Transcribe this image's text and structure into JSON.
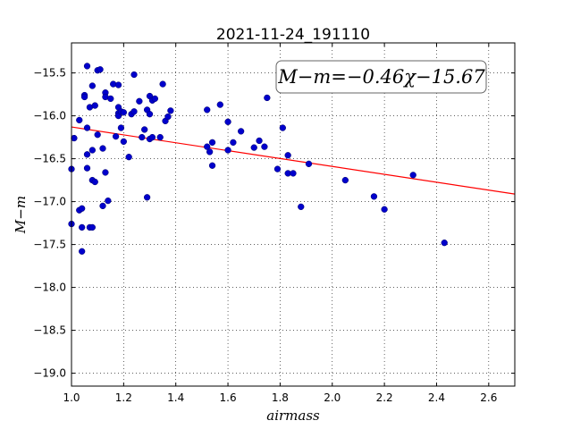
{
  "chart_data": {
    "type": "scatter",
    "title": "2021-11-24_191110",
    "xlabel": "airmass",
    "ylabel": "M−m",
    "xlim": [
      1.0,
      2.7
    ],
    "ylim": [
      -15.15,
      -19.15
    ],
    "y_inverted": true,
    "grid": true,
    "x_ticks": [
      1.0,
      1.2,
      1.4,
      1.6,
      1.8,
      2.0,
      2.2,
      2.4,
      2.6
    ],
    "x_tick_labels": [
      "1.0",
      "1.2",
      "1.4",
      "1.6",
      "1.8",
      "2.0",
      "2.2",
      "2.4",
      "2.6"
    ],
    "y_ticks": [
      -15.5,
      -16.0,
      -16.5,
      -17.0,
      -17.5,
      -18.0,
      -18.5,
      -19.0
    ],
    "y_tick_labels": [
      "−15.5",
      "−16.0",
      "−16.5",
      "−17.0",
      "−17.5",
      "−18.0",
      "−18.5",
      "−19.0"
    ],
    "annotation": "M−m=−0.46χ−15.67",
    "fit_line": {
      "slope": -0.46,
      "intercept": -15.67,
      "color": "#ff0000"
    },
    "point_color": "#0000cc",
    "points": [
      [
        1.0,
        -16.62
      ],
      [
        1.0,
        -17.26
      ],
      [
        1.01,
        -16.26
      ],
      [
        1.03,
        -16.05
      ],
      [
        1.03,
        -17.1
      ],
      [
        1.04,
        -17.08
      ],
      [
        1.04,
        -17.3
      ],
      [
        1.04,
        -17.58
      ],
      [
        1.05,
        -15.76
      ],
      [
        1.05,
        -15.78
      ],
      [
        1.06,
        -15.42
      ],
      [
        1.06,
        -16.14
      ],
      [
        1.06,
        -16.45
      ],
      [
        1.06,
        -16.61
      ],
      [
        1.07,
        -15.9
      ],
      [
        1.07,
        -17.3
      ],
      [
        1.08,
        -15.65
      ],
      [
        1.08,
        -16.4
      ],
      [
        1.08,
        -16.75
      ],
      [
        1.08,
        -17.3
      ],
      [
        1.09,
        -15.88
      ],
      [
        1.09,
        -16.77
      ],
      [
        1.1,
        -15.47
      ],
      [
        1.1,
        -16.22
      ],
      [
        1.11,
        -15.46
      ],
      [
        1.12,
        -16.38
      ],
      [
        1.12,
        -17.05
      ],
      [
        1.13,
        -15.73
      ],
      [
        1.13,
        -15.78
      ],
      [
        1.13,
        -16.66
      ],
      [
        1.14,
        -16.99
      ],
      [
        1.15,
        -15.8
      ],
      [
        1.16,
        -15.63
      ],
      [
        1.17,
        -16.24
      ],
      [
        1.18,
        -15.64
      ],
      [
        1.18,
        -15.9
      ],
      [
        1.18,
        -15.97
      ],
      [
        1.18,
        -16.0
      ],
      [
        1.19,
        -16.14
      ],
      [
        1.19,
        -15.95
      ],
      [
        1.2,
        -15.96
      ],
      [
        1.2,
        -16.3
      ],
      [
        1.22,
        -16.48
      ],
      [
        1.23,
        -15.98
      ],
      [
        1.24,
        -15.95
      ],
      [
        1.24,
        -15.52
      ],
      [
        1.26,
        -15.83
      ],
      [
        1.27,
        -16.25
      ],
      [
        1.28,
        -16.16
      ],
      [
        1.29,
        -16.95
      ],
      [
        1.29,
        -15.93
      ],
      [
        1.3,
        -16.27
      ],
      [
        1.3,
        -15.98
      ],
      [
        1.3,
        -15.77
      ],
      [
        1.31,
        -15.82
      ],
      [
        1.31,
        -16.25
      ],
      [
        1.32,
        -15.8
      ],
      [
        1.34,
        -16.25
      ],
      [
        1.35,
        -15.63
      ],
      [
        1.36,
        -16.06
      ],
      [
        1.37,
        -16.01
      ],
      [
        1.38,
        -15.94
      ],
      [
        1.52,
        -15.93
      ],
      [
        1.52,
        -16.36
      ],
      [
        1.53,
        -16.42
      ],
      [
        1.54,
        -16.31
      ],
      [
        1.54,
        -16.58
      ],
      [
        1.57,
        -15.87
      ],
      [
        1.6,
        -16.07
      ],
      [
        1.6,
        -16.4
      ],
      [
        1.62,
        -16.31
      ],
      [
        1.65,
        -16.18
      ],
      [
        1.7,
        -16.37
      ],
      [
        1.72,
        -16.29
      ],
      [
        1.74,
        -16.36
      ],
      [
        1.75,
        -15.79
      ],
      [
        1.79,
        -16.62
      ],
      [
        1.81,
        -16.14
      ],
      [
        1.83,
        -16.46
      ],
      [
        1.83,
        -16.67
      ],
      [
        1.85,
        -16.67
      ],
      [
        1.88,
        -17.06
      ],
      [
        1.91,
        -16.56
      ],
      [
        2.05,
        -16.75
      ],
      [
        2.16,
        -16.94
      ],
      [
        2.2,
        -17.09
      ],
      [
        2.31,
        -16.69
      ],
      [
        2.43,
        -17.48
      ]
    ]
  }
}
